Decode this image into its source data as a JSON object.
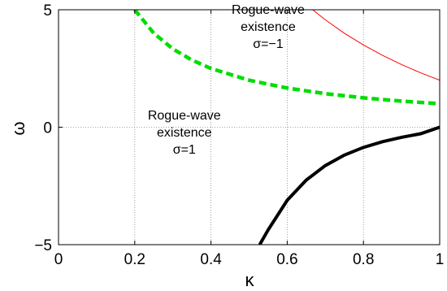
{
  "chart_data": {
    "type": "line",
    "xlabel": "κ",
    "ylabel": "ω",
    "xlim": [
      0,
      1
    ],
    "ylim": [
      -5,
      5
    ],
    "x_ticks": [
      0,
      0.2,
      0.4,
      0.6,
      0.8,
      1
    ],
    "x_tick_labels": [
      "0",
      "0.2",
      "0.4",
      "0.6",
      "0.8",
      "1"
    ],
    "y_ticks": [
      -5,
      0,
      5
    ],
    "y_tick_labels": [
      "−5",
      "0",
      "5"
    ],
    "grid": true,
    "legend": "none",
    "series": [
      {
        "color": "#ff0000",
        "style": "solid-thin",
        "x": [
          0.6667,
          0.7,
          0.75,
          0.8,
          0.85,
          0.9,
          0.95,
          1.0
        ],
        "y": [
          5.0,
          4.571,
          4.0,
          3.5,
          3.059,
          2.667,
          2.316,
          2.0
        ]
      },
      {
        "color": "#00dd00",
        "style": "dashed-thick",
        "x": [
          0.2,
          0.25,
          0.3,
          0.35,
          0.4,
          0.5,
          0.6,
          0.7,
          0.8,
          0.9,
          1.0
        ],
        "y": [
          5.0,
          4.0,
          3.333,
          2.857,
          2.5,
          2.0,
          1.667,
          1.429,
          1.25,
          1.111,
          1.0
        ]
      },
      {
        "color": "#000000",
        "style": "solid-thick",
        "x": [
          0.5278,
          0.55,
          0.6,
          0.65,
          0.7,
          0.75,
          0.8,
          0.85,
          0.9,
          0.95,
          1.0
        ],
        "y": [
          -5.0,
          -4.368,
          -3.111,
          -2.249,
          -1.633,
          -1.185,
          -0.859,
          -0.616,
          -0.429,
          -0.277,
          0.0
        ]
      }
    ],
    "annotations": [
      {
        "lines": [
          "Rogue-wave",
          "existence",
          "σ=−1"
        ],
        "x": 0.55,
        "y": 4.1
      },
      {
        "lines": [
          "Rogue-wave",
          "existence",
          "σ=1"
        ],
        "x": 0.33,
        "y": -0.4
      }
    ]
  }
}
